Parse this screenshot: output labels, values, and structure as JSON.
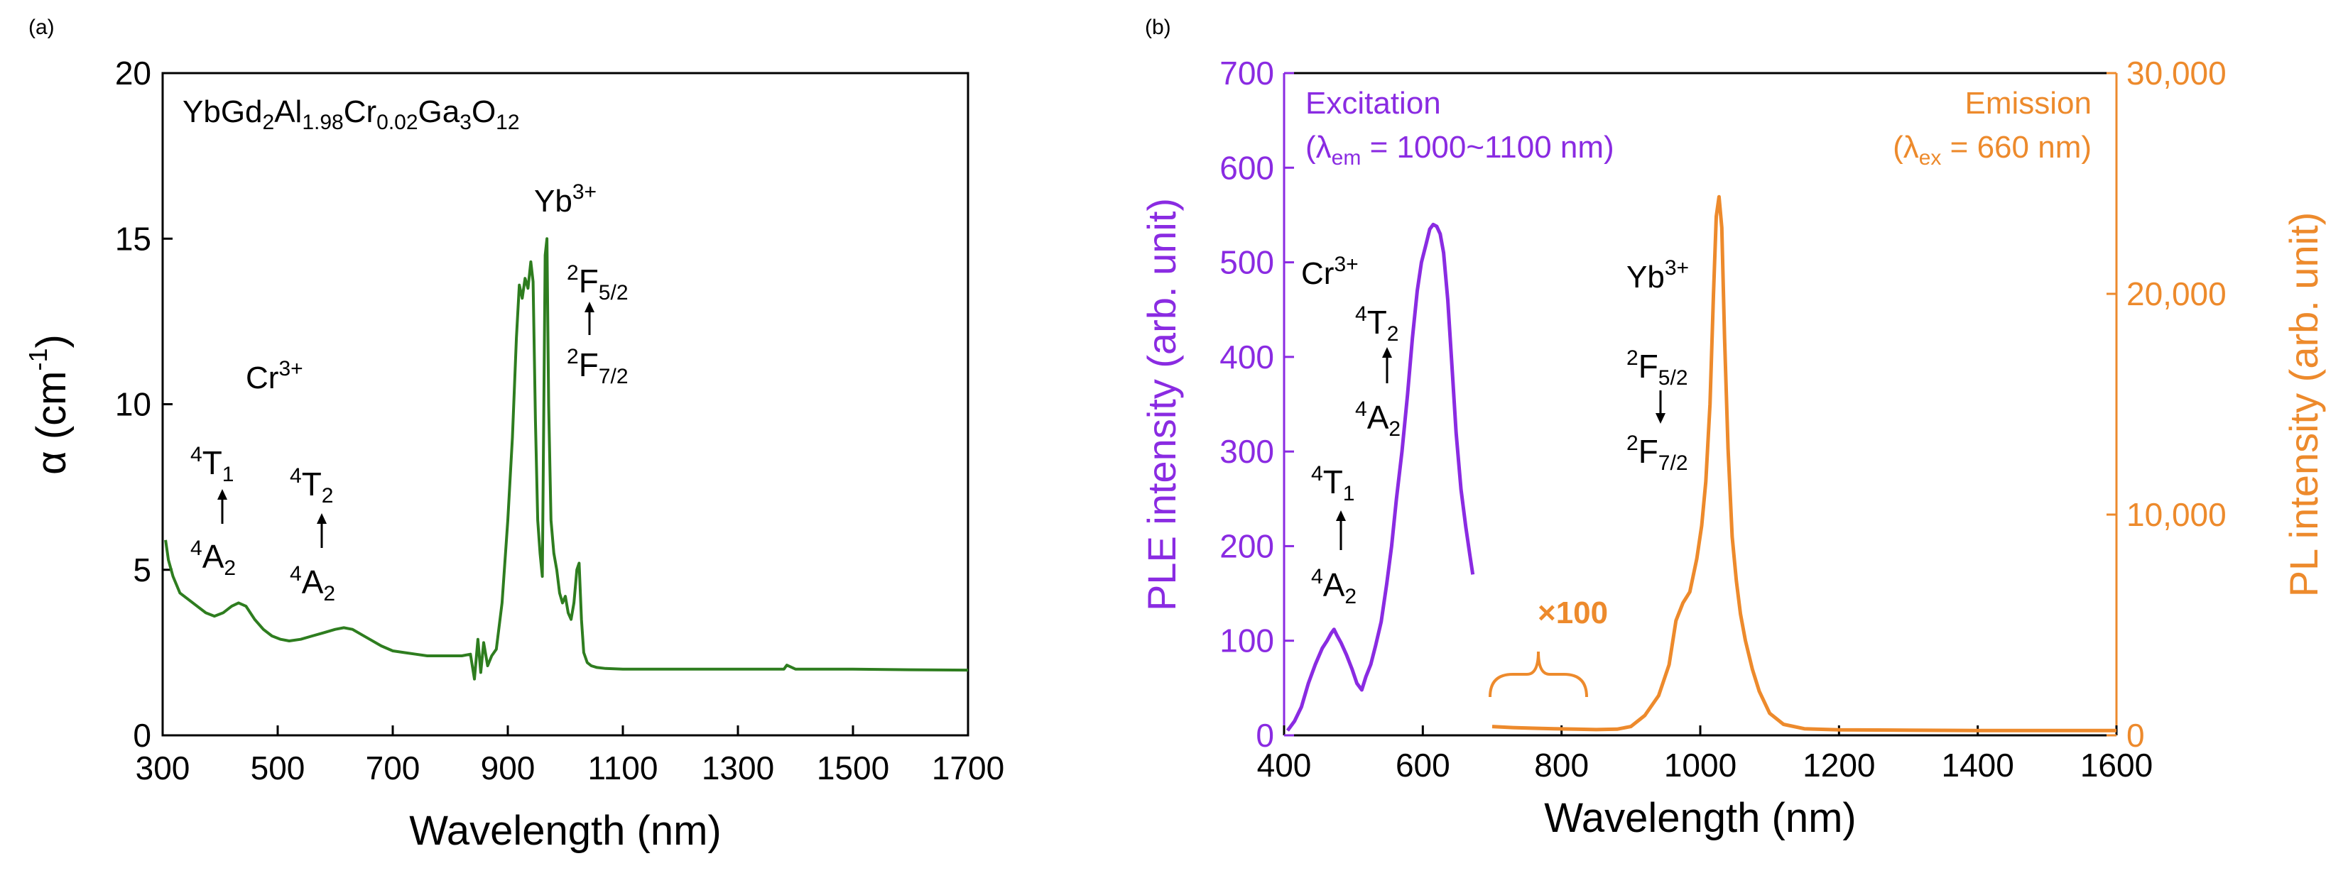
{
  "chart_data": [
    {
      "panel_label": "(a)",
      "type": "line",
      "title": "",
      "xlabel": "Wavelength (nm)",
      "ylabel": {
        "main": "α (cm",
        "sup": "-1",
        "end": ")"
      },
      "xlim": [
        300,
        1700
      ],
      "ylim": [
        0,
        20
      ],
      "xticks": [
        300,
        500,
        700,
        900,
        1100,
        1300,
        1500,
        1700
      ],
      "yticks": [
        0,
        5,
        10,
        15,
        20
      ],
      "line_color": "#2e7d1f",
      "series": [
        {
          "name": "absorption",
          "x": [
            305,
            310,
            318,
            330,
            345,
            360,
            375,
            390,
            405,
            420,
            432,
            445,
            460,
            475,
            490,
            505,
            520,
            540,
            560,
            580,
            600,
            615,
            630,
            645,
            660,
            680,
            700,
            720,
            740,
            760,
            780,
            800,
            820,
            835,
            842,
            848,
            853,
            858,
            865,
            872,
            880,
            890,
            900,
            908,
            915,
            920,
            925,
            930,
            935,
            940,
            944,
            948,
            952,
            956,
            960,
            965,
            968,
            971,
            975,
            980,
            985,
            990,
            995,
            1000,
            1005,
            1010,
            1015,
            1020,
            1024,
            1028,
            1032,
            1038,
            1045,
            1055,
            1070,
            1100,
            1200,
            1300,
            1380,
            1385,
            1400,
            1500,
            1600,
            1700
          ],
          "y": [
            5.9,
            5.3,
            4.8,
            4.3,
            4.1,
            3.9,
            3.7,
            3.6,
            3.7,
            3.9,
            4.0,
            3.9,
            3.5,
            3.2,
            3.0,
            2.9,
            2.85,
            2.9,
            3.0,
            3.1,
            3.2,
            3.25,
            3.2,
            3.05,
            2.9,
            2.7,
            2.55,
            2.5,
            2.45,
            2.4,
            2.4,
            2.4,
            2.4,
            2.45,
            1.7,
            2.9,
            1.9,
            2.8,
            2.1,
            2.4,
            2.6,
            4.0,
            6.5,
            9.0,
            12.0,
            13.6,
            13.2,
            13.8,
            13.5,
            14.3,
            13.7,
            9.5,
            6.5,
            5.5,
            4.8,
            14.5,
            15.0,
            10.0,
            6.5,
            5.5,
            5.0,
            4.3,
            4.0,
            4.2,
            3.7,
            3.5,
            4.0,
            5.0,
            5.2,
            3.5,
            2.5,
            2.2,
            2.1,
            2.05,
            2.02,
            2.0,
            2.0,
            2.0,
            2.0,
            2.12,
            2.0,
            2.0,
            1.98,
            1.97
          ]
        }
      ],
      "annotations": {
        "formula": {
          "p1": "YbGd",
          "s1": "2",
          "p2": "Al",
          "s2": "1.98",
          "p3": "Cr",
          "s3": "0.02",
          "p4": "Ga",
          "s4": "3",
          "p5": "O",
          "s5": "12"
        },
        "yb_label": {
          "base": "Yb",
          "sup": "3+"
        },
        "cr_label": {
          "base": "Cr",
          "sup": "3+"
        },
        "t1_upper": {
          "sup": "4",
          "base": "T",
          "sub": "1"
        },
        "t1_lower": {
          "sup": "4",
          "base": "A",
          "sub": "2"
        },
        "t2_upper": {
          "sup": "4",
          "base": "T",
          "sub": "2"
        },
        "t2_lower": {
          "sup": "4",
          "base": "A",
          "sub": "2"
        },
        "f_upper": {
          "sup": "2",
          "base": "F",
          "sub": "5/2"
        },
        "f_lower": {
          "sup": "2",
          "base": "F",
          "sub": "7/2"
        }
      }
    },
    {
      "panel_label": "(b)",
      "type": "line",
      "title": "",
      "xlabel": "Wavelength (nm)",
      "ylabel_left": "PLE intensity (arb. unit)",
      "ylabel_right": "PL intensity (arb. unit)",
      "xlim": [
        400,
        1600
      ],
      "ylim_left": [
        0,
        700
      ],
      "ylim_right": [
        0,
        30000
      ],
      "xticks": [
        400,
        600,
        800,
        1000,
        1200,
        1400,
        1600
      ],
      "yticks_left": [
        0,
        100,
        200,
        300,
        400,
        500,
        600,
        700
      ],
      "yticks_right": [
        0,
        10000,
        20000,
        30000
      ],
      "ytick_labels_right": [
        "0",
        "10,000",
        "20,000",
        "30,000"
      ],
      "colors": {
        "excitation": "#8a2be2",
        "emission": "#ed8a2c"
      },
      "series": [
        {
          "name": "Excitation",
          "axis": "left",
          "x": [
            405,
            415,
            425,
            435,
            445,
            455,
            462,
            468,
            472,
            476,
            482,
            490,
            498,
            505,
            512,
            518,
            525,
            532,
            540,
            548,
            555,
            562,
            570,
            578,
            585,
            592,
            598,
            605,
            610,
            615,
            620,
            625,
            630,
            636,
            642,
            648,
            655,
            662,
            668,
            672
          ],
          "y": [
            5,
            15,
            30,
            55,
            75,
            92,
            100,
            108,
            112,
            106,
            98,
            85,
            70,
            55,
            48,
            62,
            75,
            95,
            120,
            160,
            200,
            250,
            300,
            360,
            420,
            470,
            500,
            520,
            535,
            540,
            538,
            530,
            510,
            460,
            390,
            320,
            260,
            220,
            190,
            170
          ]
        },
        {
          "name": "Emission",
          "axis": "right",
          "x": [
            700,
            730,
            760,
            790,
            820,
            850,
            880,
            900,
            920,
            940,
            955,
            965,
            975,
            985,
            995,
            1002,
            1008,
            1014,
            1019,
            1023,
            1027,
            1031,
            1035,
            1040,
            1046,
            1052,
            1058,
            1065,
            1075,
            1085,
            1100,
            1120,
            1150,
            1200,
            1300,
            1400,
            1500,
            1600
          ],
          "y": [
            400,
            350,
            320,
            300,
            280,
            260,
            280,
            400,
            900,
            1800,
            3200,
            5200,
            6000,
            6500,
            8000,
            9500,
            11500,
            15000,
            20000,
            23500,
            24400,
            23000,
            18000,
            13000,
            9000,
            7000,
            5500,
            4300,
            3000,
            2000,
            1000,
            500,
            300,
            250,
            230,
            220,
            220,
            220
          ]
        }
      ],
      "annotations": {
        "excitation_title": "Excitation",
        "excitation_cond": {
          "open": "(λ",
          "sub": "em",
          "rest": " = 1000~1100 nm)"
        },
        "emission_title": "Emission",
        "emission_cond": {
          "open": "(λ",
          "sub": "ex",
          "rest": " = 660 nm)"
        },
        "times100": "×100",
        "cr_label": {
          "base": "Cr",
          "sup": "3+"
        },
        "yb_label": {
          "base": "Yb",
          "sup": "3+"
        },
        "t2_upper": {
          "sup": "4",
          "base": "T",
          "sub": "2"
        },
        "t2_lower": {
          "sup": "4",
          "base": "A",
          "sub": "2"
        },
        "t1_upper": {
          "sup": "4",
          "base": "T",
          "sub": "1"
        },
        "t1_lower": {
          "sup": "4",
          "base": "A",
          "sub": "2"
        },
        "f_upper": {
          "sup": "2",
          "base": "F",
          "sub": "5/2"
        },
        "f_lower": {
          "sup": "2",
          "base": "F",
          "sub": "7/2"
        }
      }
    }
  ]
}
